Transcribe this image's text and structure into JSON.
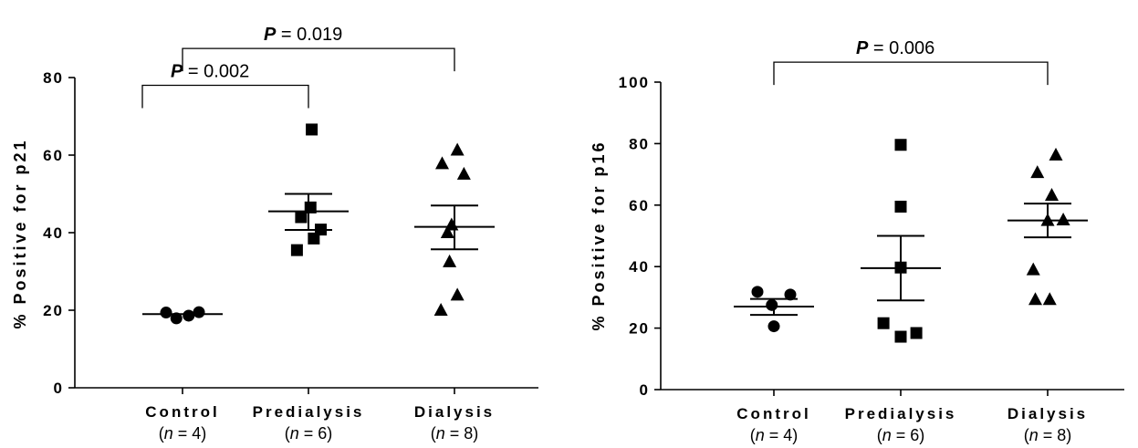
{
  "chart_data": [
    {
      "type": "scatter",
      "ylabel": "% Positive for p21",
      "ylim": [
        0,
        80
      ],
      "yticks": [
        "0",
        "20",
        "40",
        "60",
        "80"
      ],
      "categories": [
        {
          "name": "Control",
          "n_prefix": "(",
          "n_var": "n",
          "n_text": " = 4)",
          "marker": "circle"
        },
        {
          "name": "Predialysis",
          "n_prefix": "(",
          "n_var": "n",
          "n_text": " = 6)",
          "marker": "square"
        },
        {
          "name": "Dialysis",
          "n_prefix": "(",
          "n_var": "n",
          "n_text": " = 8)",
          "marker": "triangle"
        }
      ],
      "points": [
        [
          {
            "dx": -0.4,
            "y": 19.4
          },
          {
            "dx": -0.15,
            "y": 17.9
          },
          {
            "dx": 0.15,
            "y": 18.6
          },
          {
            "dx": 0.4,
            "y": 19.5
          }
        ],
        [
          {
            "dx": -0.28,
            "y": 35.5
          },
          {
            "dx": -0.18,
            "y": 44.0
          },
          {
            "dx": 0.05,
            "y": 46.5
          },
          {
            "dx": 0.08,
            "y": 66.6
          },
          {
            "dx": 0.13,
            "y": 38.5
          },
          {
            "dx": 0.3,
            "y": 40.8
          }
        ],
        [
          {
            "dx": -0.33,
            "y": 20.0
          },
          {
            "dx": -0.3,
            "y": 57.8
          },
          {
            "dx": -0.17,
            "y": 40.0
          },
          {
            "dx": -0.07,
            "y": 42.0
          },
          {
            "dx": -0.12,
            "y": 32.5
          },
          {
            "dx": 0.07,
            "y": 23.9
          },
          {
            "dx": 0.07,
            "y": 61.3
          },
          {
            "dx": 0.23,
            "y": 55.1
          }
        ]
      ],
      "summary": [
        {
          "mean": 19.0,
          "upper": 19.0,
          "lower": 19.0
        },
        {
          "mean": 45.5,
          "upper": 50.0,
          "lower": 40.7
        },
        {
          "mean": 41.5,
          "upper": 47.0,
          "lower": 35.7
        }
      ],
      "brackets": [
        {
          "from": 0,
          "to": 1,
          "y": 78.0,
          "p_label": "P",
          "p_value": " = 0.002"
        },
        {
          "from": 0,
          "to": 2,
          "y": 87.5,
          "p_label": "P",
          "p_value": " = 0.019"
        }
      ]
    },
    {
      "type": "scatter",
      "ylabel": "% Positive for p16",
      "ylim": [
        0,
        100
      ],
      "yticks": [
        "0",
        "20",
        "40",
        "60",
        "80",
        "100"
      ],
      "categories": [
        {
          "name": "Control",
          "n_prefix": "(",
          "n_var": "n",
          "n_text": " = 4)",
          "marker": "circle"
        },
        {
          "name": "Predialysis",
          "n_prefix": "(",
          "n_var": "n",
          "n_text": " = 6)",
          "marker": "square"
        },
        {
          "name": "Dialysis",
          "n_prefix": "(",
          "n_var": "n",
          "n_text": " = 8)",
          "marker": "triangle"
        }
      ],
      "points": [
        [
          {
            "dx": -0.4,
            "y": 31.8
          },
          {
            "dx": 0.0,
            "y": 20.6
          },
          {
            "dx": -0.05,
            "y": 27.5
          },
          {
            "dx": 0.4,
            "y": 30.9
          }
        ],
        [
          {
            "dx": -0.42,
            "y": 21.6
          },
          {
            "dx": 0.0,
            "y": 17.2
          },
          {
            "dx": 0.0,
            "y": 59.5
          },
          {
            "dx": 0.0,
            "y": 79.6
          },
          {
            "dx": 0.0,
            "y": 39.7
          },
          {
            "dx": 0.38,
            "y": 18.4
          }
        ],
        [
          {
            "dx": -0.3,
            "y": 29.3
          },
          {
            "dx": -0.35,
            "y": 39.0
          },
          {
            "dx": 0.05,
            "y": 29.3
          },
          {
            "dx": -0.25,
            "y": 70.6
          },
          {
            "dx": 0.0,
            "y": 55.0
          },
          {
            "dx": 0.1,
            "y": 63.2
          },
          {
            "dx": 0.38,
            "y": 55.2
          },
          {
            "dx": 0.2,
            "y": 76.3
          }
        ]
      ],
      "summary": [
        {
          "mean": 27.0,
          "upper": 29.5,
          "lower": 24.3
        },
        {
          "mean": 39.5,
          "upper": 50.0,
          "lower": 29.0
        },
        {
          "mean": 55.0,
          "upper": 60.5,
          "lower": 49.5
        }
      ],
      "brackets": [
        {
          "from": 0,
          "to": 2,
          "y": 106.5,
          "p_label": "P",
          "p_value": " = 0.006"
        }
      ]
    }
  ]
}
